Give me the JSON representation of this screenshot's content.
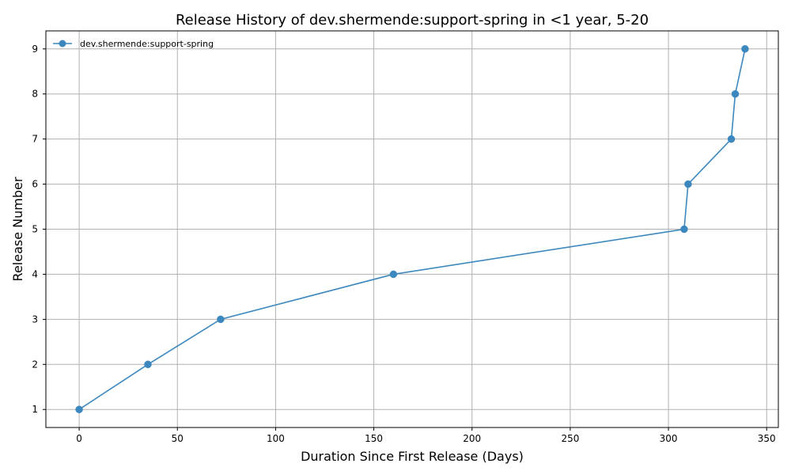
{
  "chart_data": {
    "type": "line",
    "title": "Release History of dev.shermende:support-spring in <1 year, 5-20",
    "xlabel": "Duration Since First Release (Days)",
    "ylabel": "Release Number",
    "xlim": [
      -16.95,
      355.95
    ],
    "ylim": [
      0.6,
      9.4
    ],
    "xticks": [
      0,
      50,
      100,
      150,
      200,
      250,
      300,
      350
    ],
    "yticks": [
      1,
      2,
      3,
      4,
      5,
      6,
      7,
      8,
      9
    ],
    "grid": true,
    "legend_position": "top-left",
    "series": [
      {
        "name": "dev.shermende:support-spring",
        "color": "#3c88be",
        "x": [
          0,
          35,
          72,
          160,
          308,
          310,
          332,
          334,
          339
        ],
        "y": [
          1,
          2,
          3,
          4,
          5,
          6,
          7,
          8,
          9
        ]
      }
    ]
  }
}
